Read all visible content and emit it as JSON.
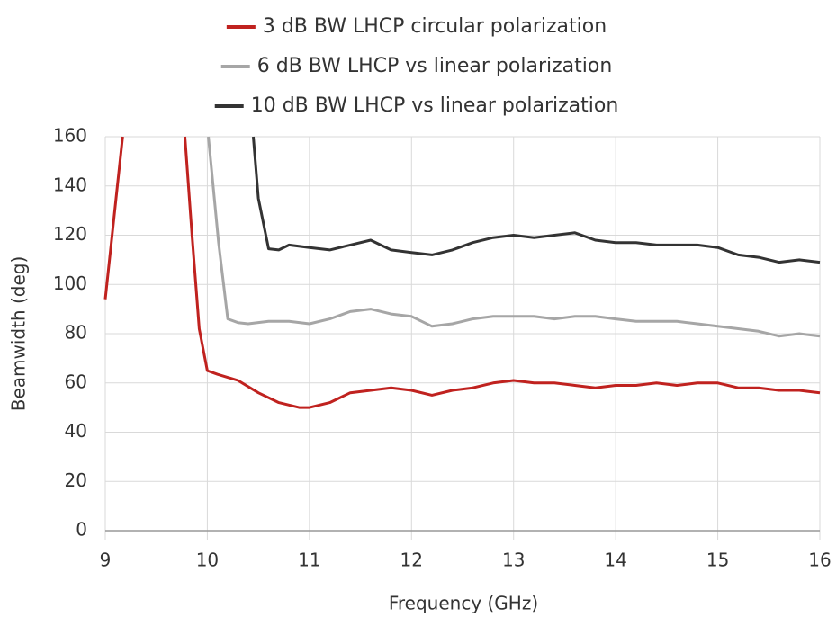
{
  "chart_data": {
    "type": "line",
    "x_label": "Frequency (GHz)",
    "y_label": "Beamwidth (deg)",
    "xlim": [
      9,
      16
    ],
    "xticks": [
      9,
      10,
      11,
      12,
      13,
      14,
      15,
      16
    ],
    "ylim": [
      0,
      160
    ],
    "yticks": [
      0,
      20,
      40,
      60,
      80,
      100,
      120,
      140,
      160
    ],
    "grid": true,
    "legend": "top",
    "series": [
      {
        "name": "3 dB BW LHCP circular polarization",
        "color": "#c0221f",
        "x": [
          9.0,
          9.17,
          9.5,
          9.78,
          9.85,
          9.92,
          10.0,
          10.1,
          10.3,
          10.5,
          10.7,
          10.9,
          11.0,
          11.2,
          11.4,
          11.6,
          11.8,
          12.0,
          12.2,
          12.4,
          12.6,
          12.8,
          13.0,
          13.2,
          13.4,
          13.6,
          13.8,
          14.0,
          14.2,
          14.4,
          14.6,
          14.8,
          15.0,
          15.2,
          15.4,
          15.6,
          15.8,
          16.0
        ],
        "values": [
          94,
          160,
          null,
          160,
          120,
          82,
          65,
          63.5,
          61,
          56,
          52,
          50,
          50,
          52,
          56,
          57,
          58,
          57,
          55,
          57,
          58,
          60,
          61,
          60,
          60,
          59,
          58,
          59,
          59,
          60,
          59,
          60,
          60,
          58,
          58,
          57,
          57,
          56
        ]
      },
      {
        "name": "6 dB BW LHCP vs linear polarization",
        "color": "#a6a6a6",
        "x": [
          10.01,
          10.11,
          10.2,
          10.3,
          10.4,
          10.6,
          10.8,
          11.0,
          11.2,
          11.4,
          11.6,
          11.8,
          12.0,
          12.2,
          12.4,
          12.6,
          12.8,
          13.0,
          13.2,
          13.4,
          13.6,
          13.8,
          14.0,
          14.2,
          14.4,
          14.6,
          14.8,
          15.0,
          15.2,
          15.4,
          15.6,
          15.8,
          16.0
        ],
        "values": [
          160,
          117,
          86,
          84.5,
          84,
          85,
          85,
          84,
          86,
          89,
          90,
          88,
          87,
          83,
          84,
          86,
          87,
          87,
          87,
          86,
          87,
          87,
          86,
          85,
          85,
          85,
          84,
          83,
          82,
          81,
          79,
          80,
          79
        ]
      },
      {
        "name": "10 dB BW LHCP vs linear polarization",
        "color": "#333333",
        "x": [
          10.45,
          10.5,
          10.6,
          10.7,
          10.8,
          11.0,
          11.2,
          11.4,
          11.6,
          11.8,
          12.0,
          12.2,
          12.4,
          12.6,
          12.8,
          13.0,
          13.2,
          13.4,
          13.6,
          13.8,
          14.0,
          14.2,
          14.4,
          14.6,
          14.8,
          15.0,
          15.2,
          15.4,
          15.6,
          15.8,
          16.0
        ],
        "values": [
          160,
          135,
          114.5,
          114,
          116,
          115,
          114,
          116,
          118,
          114,
          113,
          112,
          114,
          117,
          119,
          120,
          119,
          120,
          121,
          118,
          117,
          117,
          116,
          116,
          116,
          115,
          112,
          111,
          109,
          110,
          109
        ]
      }
    ]
  }
}
